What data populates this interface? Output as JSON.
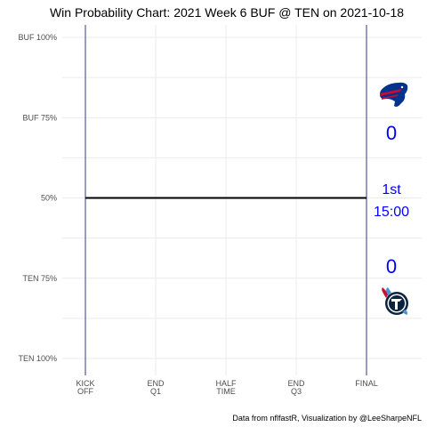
{
  "chart_data": {
    "type": "line",
    "title": "Win Probability Chart: 2021 Week 6 BUF @ TEN on 2021-10-18",
    "caption": "Data from nflfastR, Visualization by @LeeSharpeNFL",
    "xlim": [
      0,
      3600
    ],
    "ylim": [
      0,
      1
    ],
    "grid": true,
    "x_ticks": [
      {
        "value": 0,
        "line1": "KICK",
        "line2": "OFF"
      },
      {
        "value": 900,
        "line1": "END",
        "line2": "Q1"
      },
      {
        "value": 1800,
        "line1": "HALF",
        "line2": "TIME"
      },
      {
        "value": 2700,
        "line1": "END",
        "line2": "Q3"
      },
      {
        "value": 3600,
        "line1": "FINAL",
        "line2": ""
      }
    ],
    "y_ticks": [
      {
        "value": 1.0,
        "label": "BUF 100%"
      },
      {
        "value": 0.75,
        "label": "BUF 75%"
      },
      {
        "value": 0.5,
        "label": "50%"
      },
      {
        "value": 0.25,
        "label": "TEN 75%"
      },
      {
        "value": 0.0,
        "label": "TEN 100%"
      }
    ],
    "series": [
      {
        "points": [
          {
            "x": 0,
            "y": 0.5
          },
          {
            "x": 3600,
            "y": 0.5
          }
        ]
      }
    ],
    "annotations": {
      "away_team": "BUF",
      "home_team": "TEN",
      "away_score": "0",
      "home_score": "0",
      "quarter": "1st",
      "clock": "15:00"
    },
    "colors": {
      "line": "#000000",
      "score_text": "#0000ff",
      "boundary": "#2c3e80",
      "grid": "#ebebeb",
      "bills_blue": "#00338d",
      "bills_red": "#c60c30",
      "titans_navy": "#0c2340",
      "titans_blue": "#4b92db",
      "titans_red": "#c8102e"
    }
  }
}
